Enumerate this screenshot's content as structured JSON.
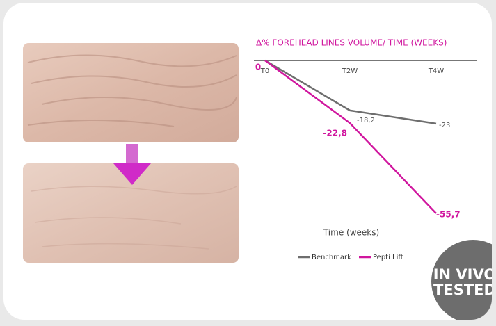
{
  "chart_data": {
    "type": "line",
    "title": "Δ% FOREHEAD LINES VOLUME/ TIME (WEEKS)",
    "x_label": "Time (weeks)",
    "categories": [
      "T0",
      "T2W",
      "T4W"
    ],
    "series": [
      {
        "name": "Benchmark",
        "color": "#6e6e6e",
        "values": [
          0,
          -18.2,
          -23
        ],
        "value_labels": [
          null,
          "-18,2",
          "-23"
        ]
      },
      {
        "name": "Pepti Lift",
        "color": "#d0169e",
        "values": [
          0,
          -22.8,
          -55.7
        ],
        "value_labels": [
          "0",
          "-22,8",
          "-55,7"
        ]
      }
    ],
    "legend": "bottom"
  },
  "badge": [
    "IN VIVO",
    "TESTED"
  ]
}
